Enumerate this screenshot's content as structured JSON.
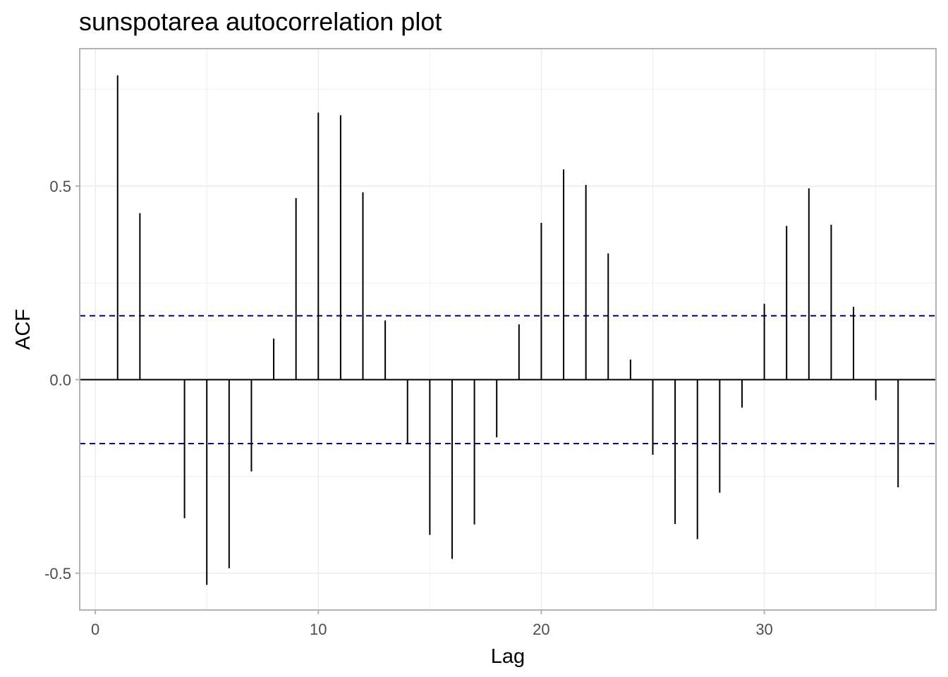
{
  "chart_data": {
    "type": "bar",
    "title": "sunspotarea autocorrelation plot",
    "xlabel": "Lag",
    "ylabel": "ACF",
    "xlim": [
      -0.7,
      37.7
    ],
    "ylim": [
      -0.595,
      0.855
    ],
    "x_ticks": [
      0,
      10,
      20,
      30
    ],
    "x_tick_labels": [
      "0",
      "10",
      "20",
      "30"
    ],
    "y_ticks": [
      -0.5,
      0.0,
      0.5
    ],
    "y_tick_labels": [
      "-0.5",
      "0.0",
      "0.5"
    ],
    "grid": true,
    "confidence_bound": 0.165,
    "confidence_color": "#00008b",
    "bar_color": "#000000",
    "x": [
      1,
      2,
      3,
      4,
      5,
      6,
      7,
      8,
      9,
      10,
      11,
      12,
      13,
      14,
      15,
      16,
      17,
      18,
      19,
      20,
      21,
      22,
      23,
      24,
      25,
      26,
      27,
      28,
      29,
      30,
      31,
      32,
      33,
      34,
      35,
      36
    ],
    "values": [
      0.786,
      0.43,
      0.0,
      -0.358,
      -0.53,
      -0.487,
      -0.237,
      0.106,
      0.469,
      0.69,
      0.683,
      0.484,
      0.153,
      -0.165,
      -0.401,
      -0.463,
      -0.374,
      -0.149,
      0.143,
      0.405,
      0.543,
      0.503,
      0.326,
      0.052,
      -0.194,
      -0.373,
      -0.412,
      -0.292,
      -0.072,
      0.196,
      0.397,
      0.494,
      0.4,
      0.188,
      -0.053,
      -0.278
    ]
  }
}
